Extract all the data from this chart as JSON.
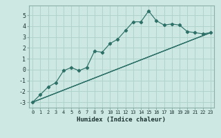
{
  "xlabel": "Humidex (Indice chaleur)",
  "background_color": "#cde8e2",
  "grid_color": "#b0d4cc",
  "line_color": "#2d7068",
  "xlim": [
    -0.5,
    23.5
  ],
  "ylim": [
    -3.5,
    5.9
  ],
  "xticks": [
    0,
    1,
    2,
    3,
    4,
    5,
    6,
    7,
    8,
    9,
    10,
    11,
    12,
    13,
    14,
    15,
    16,
    17,
    18,
    19,
    20,
    21,
    22,
    23
  ],
  "yticks": [
    -3,
    -2,
    -1,
    0,
    1,
    2,
    3,
    4,
    5
  ],
  "series": [
    [
      0,
      -3.0
    ],
    [
      1,
      -2.3
    ],
    [
      2,
      -1.6
    ],
    [
      3,
      -1.2
    ],
    [
      4,
      -0.1
    ],
    [
      5,
      0.2
    ],
    [
      6,
      -0.1
    ],
    [
      7,
      0.2
    ],
    [
      8,
      1.7
    ],
    [
      9,
      1.6
    ],
    [
      10,
      2.4
    ],
    [
      11,
      2.8
    ],
    [
      12,
      3.6
    ],
    [
      13,
      4.4
    ],
    [
      14,
      4.4
    ],
    [
      15,
      5.4
    ],
    [
      16,
      4.5
    ],
    [
      17,
      4.1
    ],
    [
      18,
      4.2
    ],
    [
      19,
      4.1
    ],
    [
      20,
      3.5
    ],
    [
      21,
      3.4
    ],
    [
      22,
      3.3
    ],
    [
      23,
      3.4
    ]
  ],
  "ref_lines": [
    [
      [
        0,
        -3.0
      ],
      [
        23,
        3.4
      ]
    ],
    [
      [
        0,
        -3.0
      ],
      [
        23,
        3.4
      ]
    ],
    [
      [
        0,
        -3.0
      ],
      [
        23,
        3.4
      ]
    ]
  ]
}
